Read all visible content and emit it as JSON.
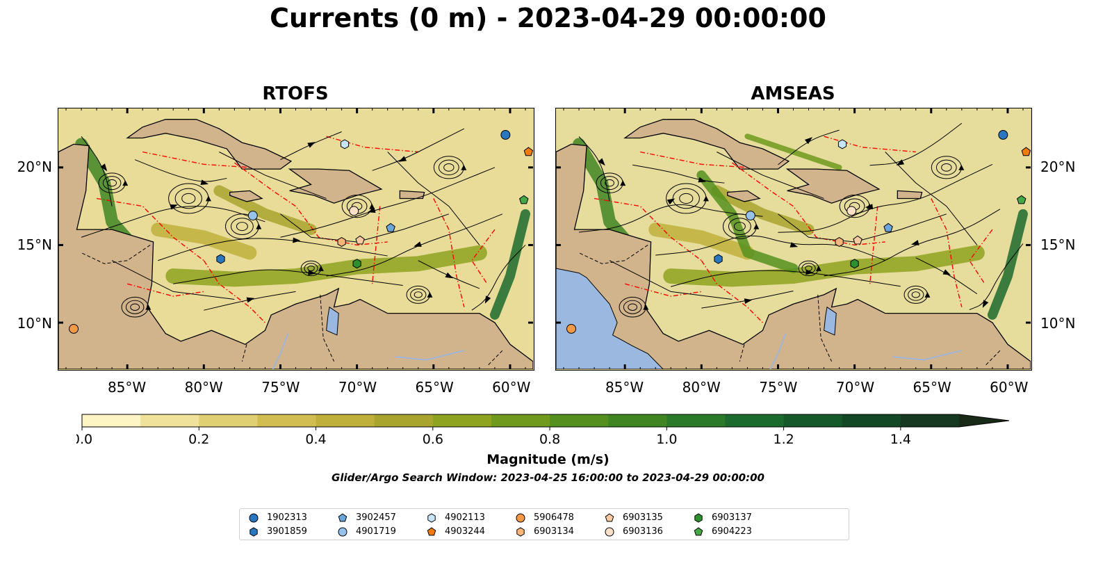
{
  "title": "Currents (0 m) - 2023-04-29 00:00:00",
  "panels": [
    {
      "title": "RTOFS",
      "sea_color": "#e9dc98"
    },
    {
      "title": "AMSEAS",
      "sea_color": "#e6dc9c"
    }
  ],
  "axes": {
    "lon_labels": [
      "85°W",
      "80°W",
      "75°W",
      "70°W",
      "65°W",
      "60°W"
    ],
    "lon_values": [
      -85,
      -80,
      -75,
      -70,
      -65,
      -60
    ],
    "lat_labels": [
      "20°N",
      "15°N",
      "10°N"
    ],
    "lat_values": [
      20,
      15,
      10
    ],
    "lon_range": [
      -89.5,
      -58.5
    ],
    "lat_range": [
      7,
      23.8
    ]
  },
  "colorbar": {
    "title": "Magnitude (m/s)",
    "tick_labels": [
      "0.0",
      "0.2",
      "0.4",
      "0.6",
      "0.8",
      "1.0",
      "1.2",
      "1.4"
    ],
    "tick_values": [
      0,
      0.2,
      0.4,
      0.6,
      0.8,
      1.0,
      1.2,
      1.4
    ],
    "range": [
      0,
      1.5
    ],
    "extend": "max",
    "colors": [
      "#fdf5c4",
      "#f0e29a",
      "#e0cf73",
      "#d2bd52",
      "#bfb03c",
      "#a8a42e",
      "#8ea320",
      "#6f9a1e",
      "#55901f",
      "#3f8623",
      "#2a7a2a",
      "#1c6b2e",
      "#15592b",
      "#134826",
      "#163a21",
      "#1a2a18"
    ]
  },
  "subtitle": "Glider/Argo Search Window: 2023-04-25 16:00:00 to 2023-04-29 00:00:00",
  "colors": {
    "land": "#d2b48c",
    "ocean_pacific": "#9ab8e0",
    "eez_line": "#ff0000",
    "streamline": "#000000",
    "river": "#a0b4d8"
  },
  "floats": [
    {
      "id": "1902313",
      "marker": "circle",
      "color": "#2a77bf"
    },
    {
      "id": "3901859",
      "marker": "hexagon",
      "color": "#2a77bf"
    },
    {
      "id": "3902457",
      "marker": "pentagon",
      "color": "#6aa6dc"
    },
    {
      "id": "4901719",
      "marker": "circle",
      "color": "#97c3ea"
    },
    {
      "id": "4902113",
      "marker": "hexagon",
      "color": "#c8e4f8"
    },
    {
      "id": "4903244",
      "marker": "pentagon",
      "color": "#f07c10"
    },
    {
      "id": "5906478",
      "marker": "circle",
      "color": "#f49a46"
    },
    {
      "id": "6903134",
      "marker": "hexagon",
      "color": "#f8b57a"
    },
    {
      "id": "6903135",
      "marker": "pentagon",
      "color": "#f9c9a0"
    },
    {
      "id": "6903136",
      "marker": "circle",
      "color": "#fde0c8"
    },
    {
      "id": "6903137",
      "marker": "hexagon",
      "color": "#2e8f2e"
    },
    {
      "id": "6904223",
      "marker": "pentagon",
      "color": "#44a844"
    }
  ],
  "float_positions": [
    {
      "id": "1902313",
      "lon": -60.3,
      "lat": 22.1
    },
    {
      "id": "4903244",
      "lon": -58.8,
      "lat": 21.0
    },
    {
      "id": "4902113",
      "lon": -70.8,
      "lat": 21.5
    },
    {
      "id": "6904223",
      "lon": -59.1,
      "lat": 17.9
    },
    {
      "id": "6903136",
      "lon": -70.2,
      "lat": 17.2
    },
    {
      "id": "4901719",
      "lon": -76.8,
      "lat": 16.9
    },
    {
      "id": "3902457",
      "lon": -67.8,
      "lat": 16.1
    },
    {
      "id": "6903134",
      "lon": -71.0,
      "lat": 15.2
    },
    {
      "id": "6903135",
      "lon": -69.8,
      "lat": 15.3
    },
    {
      "id": "3901859",
      "lon": -78.9,
      "lat": 14.1
    },
    {
      "id": "6903137",
      "lon": -70.0,
      "lat": 13.8
    },
    {
      "id": "5906478",
      "lon": -88.5,
      "lat": 9.6
    }
  ]
}
